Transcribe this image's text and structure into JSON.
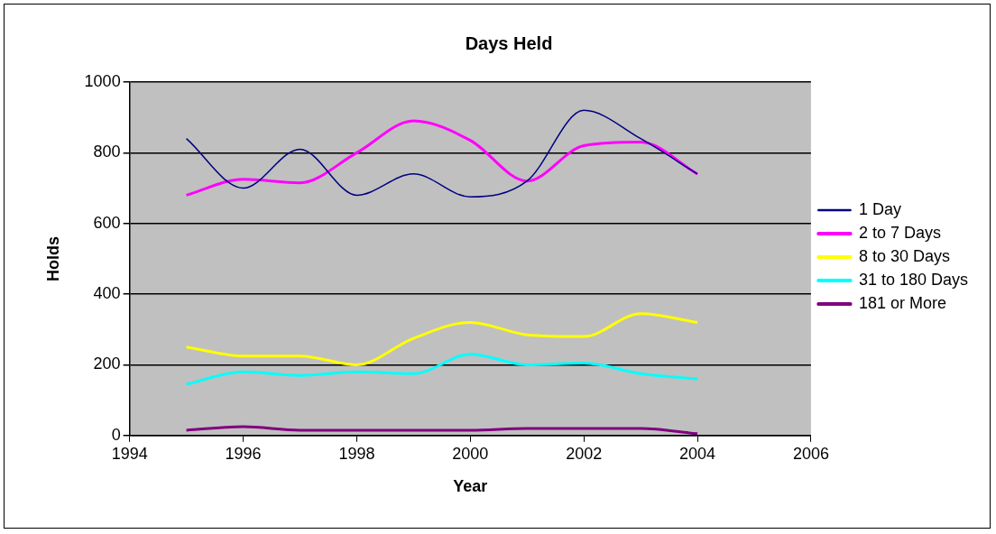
{
  "chart_data": {
    "type": "line",
    "title": "Days Held",
    "xlabel": "Year",
    "ylabel": "Holds",
    "x": [
      1995,
      1996,
      1997,
      1998,
      1999,
      2000,
      2001,
      2002,
      2003,
      2004
    ],
    "series": [
      {
        "name": "1 Day",
        "color": "#000080",
        "values": [
          840,
          700,
          810,
          680,
          740,
          675,
          720,
          920,
          840,
          740
        ]
      },
      {
        "name": "2 to 7 Days",
        "color": "#ff00ff",
        "values": [
          680,
          725,
          715,
          800,
          890,
          835,
          720,
          820,
          830,
          740
        ]
      },
      {
        "name": "8 to 30 Days",
        "color": "#ffff00",
        "values": [
          250,
          225,
          225,
          200,
          275,
          320,
          285,
          280,
          345,
          320
        ]
      },
      {
        "name": "31 to 180 Days",
        "color": "#00ffff",
        "values": [
          145,
          180,
          170,
          180,
          175,
          230,
          200,
          205,
          175,
          160
        ]
      },
      {
        "name": "181 or More",
        "color": "#800080",
        "values": [
          15,
          25,
          15,
          15,
          15,
          15,
          20,
          20,
          20,
          5
        ]
      }
    ],
    "xlim": [
      1994,
      2006
    ],
    "xticks": [
      1994,
      1996,
      1998,
      2000,
      2002,
      2004,
      2006
    ],
    "ylim": [
      0,
      1000
    ],
    "yticks": [
      0,
      200,
      400,
      600,
      800,
      1000
    ],
    "grid": "y",
    "legend": "right",
    "marker": "none",
    "line_style": "solid"
  }
}
